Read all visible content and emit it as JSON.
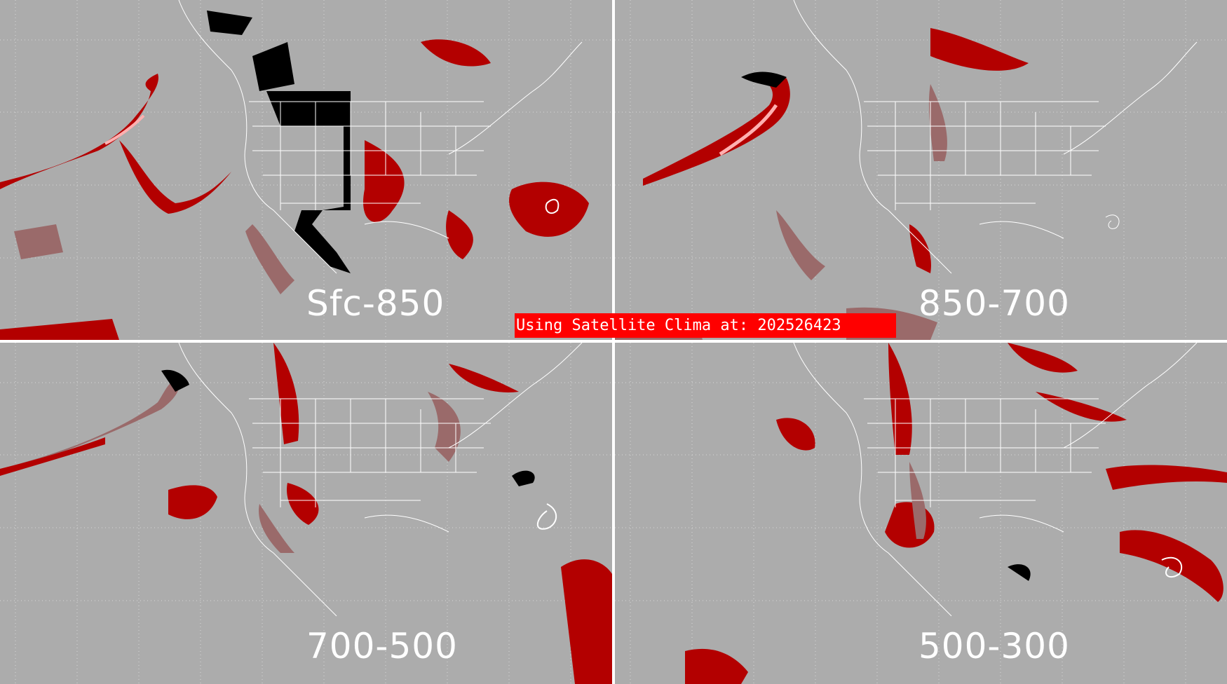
{
  "panels": [
    {
      "id": "tl",
      "label": "Sfc-850"
    },
    {
      "id": "tr",
      "label": "850-700"
    },
    {
      "id": "bl",
      "label": "700-500"
    },
    {
      "id": "br",
      "label": "500-300"
    }
  ],
  "banner": {
    "text": "Using Satellite Clima at: 202526423"
  },
  "colors": {
    "background": "#acacac",
    "coast_lines": "#ffffff",
    "grid": "#d8d8d8",
    "light_cloud": "#9a6a6a",
    "moderate": "#b30000",
    "high": "#ffb0b0",
    "missing": "#000000",
    "banner": "#ff0000"
  }
}
